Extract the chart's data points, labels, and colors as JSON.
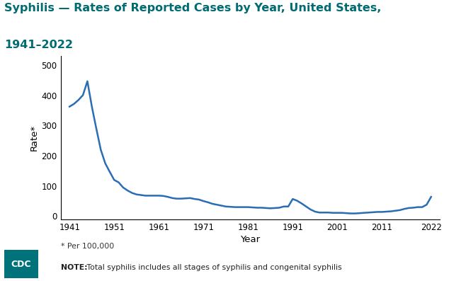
{
  "title_line1": "Syphilis — Rates of Reported Cases by Year, United States,",
  "title_line2": "1941–2022",
  "title_color": "#006b72",
  "xlabel": "Year",
  "ylabel": "Rate*",
  "footnote1": "* Per 100,000",
  "footnote2": "NOTE: Total syphilis includes all stages of syphilis and congenital syphilis",
  "footnote2_bold": "NOTE:",
  "line_color": "#2a6db5",
  "background_color": "#ffffff",
  "xticks": [
    1941,
    1951,
    1961,
    1971,
    1981,
    1991,
    2001,
    2011,
    2022
  ],
  "yticks": [
    0,
    100,
    200,
    300,
    400,
    500
  ],
  "xlim": [
    1939,
    2024
  ],
  "ylim": [
    -10,
    530
  ],
  "years": [
    1941,
    1942,
    1943,
    1944,
    1945,
    1946,
    1947,
    1948,
    1949,
    1950,
    1951,
    1952,
    1953,
    1954,
    1955,
    1956,
    1957,
    1958,
    1959,
    1960,
    1961,
    1962,
    1963,
    1964,
    1965,
    1966,
    1967,
    1968,
    1969,
    1970,
    1971,
    1972,
    1973,
    1974,
    1975,
    1976,
    1977,
    1978,
    1979,
    1980,
    1981,
    1982,
    1983,
    1984,
    1985,
    1986,
    1987,
    1988,
    1989,
    1990,
    1991,
    1992,
    1993,
    1994,
    1995,
    1996,
    1997,
    1998,
    1999,
    2000,
    2001,
    2002,
    2003,
    2004,
    2005,
    2006,
    2007,
    2008,
    2009,
    2010,
    2011,
    2012,
    2013,
    2014,
    2015,
    2016,
    2017,
    2018,
    2019,
    2020,
    2021,
    2022
  ],
  "rates": [
    363,
    372,
    385,
    401,
    447,
    363,
    290,
    220,
    175,
    147,
    120,
    112,
    95,
    85,
    77,
    72,
    70,
    68,
    68,
    68,
    68,
    67,
    64,
    60,
    58,
    58,
    59,
    60,
    57,
    55,
    50,
    46,
    41,
    38,
    35,
    32,
    31,
    30,
    30,
    30,
    30,
    29,
    28,
    28,
    27,
    26,
    27,
    28,
    32,
    32,
    57,
    51,
    42,
    32,
    22,
    15,
    12,
    12,
    12,
    11,
    11,
    11,
    10,
    9,
    9,
    10,
    11,
    12,
    13,
    14,
    14,
    15,
    16,
    18,
    20,
    24,
    27,
    28,
    30,
    30,
    38,
    64
  ],
  "title_fontsize": 11.5,
  "tick_fontsize": 8.5,
  "label_fontsize": 9.5,
  "footnote_fontsize": 7.8
}
